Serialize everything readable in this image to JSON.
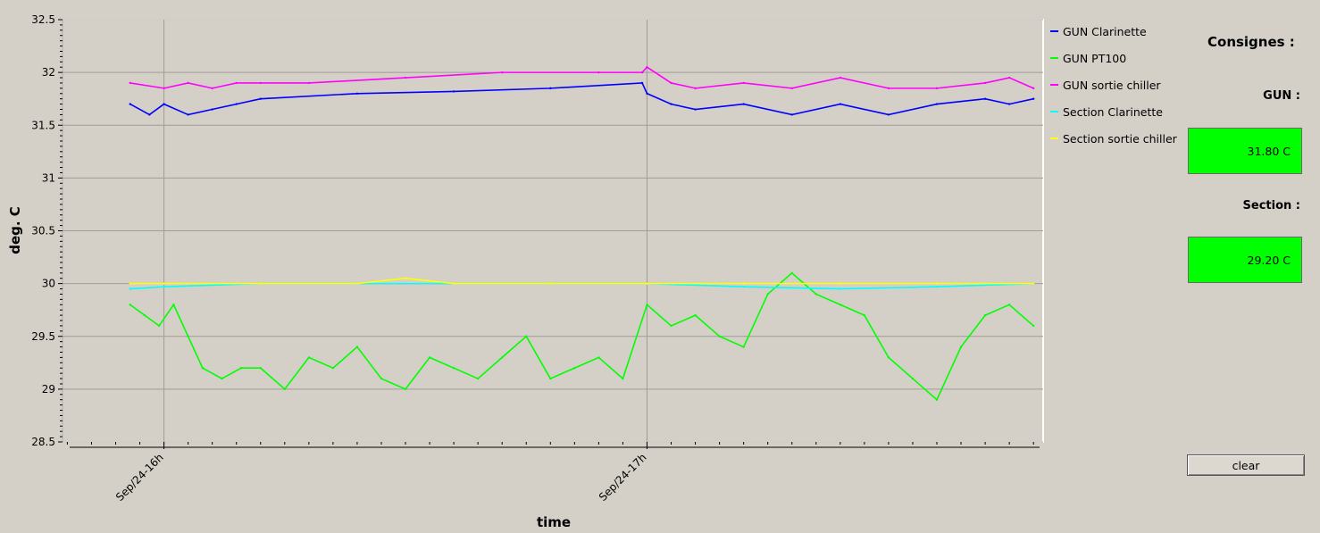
{
  "chart_data": {
    "type": "line",
    "xlabel": "time",
    "ylabel": "deg. C",
    "ylim": [
      28.5,
      32.5
    ],
    "yticks": [
      "28.5",
      "29",
      "29.5",
      "30",
      "30.5",
      "31",
      "31.5",
      "32",
      "32.5"
    ],
    "xticks": [
      "Sep/24-16h",
      "Sep/24-17h"
    ],
    "xrange_hours": [
      15.79,
      17.82
    ],
    "grid": true,
    "legend_placement": "right",
    "series": [
      {
        "name": "GUN Clarinette",
        "color": "#0000ff",
        "x": [
          15.93,
          15.97,
          16.0,
          16.05,
          16.1,
          16.15,
          16.2,
          16.4,
          16.6,
          16.8,
          16.99,
          17.0,
          17.05,
          17.1,
          17.2,
          17.3,
          17.4,
          17.5,
          17.6,
          17.7,
          17.75,
          17.8
        ],
        "y": [
          31.7,
          31.6,
          31.7,
          31.6,
          31.65,
          31.7,
          31.75,
          31.8,
          31.82,
          31.85,
          31.9,
          31.8,
          31.7,
          31.65,
          31.7,
          31.6,
          31.7,
          31.6,
          31.7,
          31.75,
          31.7,
          31.75
        ]
      },
      {
        "name": "GUN PT100",
        "color": "#00ff00",
        "x": [
          15.93,
          15.96,
          15.99,
          16.02,
          16.05,
          16.08,
          16.12,
          16.16,
          16.2,
          16.25,
          16.3,
          16.35,
          16.4,
          16.45,
          16.5,
          16.55,
          16.6,
          16.65,
          16.7,
          16.75,
          16.8,
          16.85,
          16.9,
          16.95,
          17.0,
          17.05,
          17.1,
          17.15,
          17.2,
          17.25,
          17.3,
          17.35,
          17.4,
          17.45,
          17.5,
          17.55,
          17.6,
          17.65,
          17.7,
          17.75,
          17.8
        ],
        "y": [
          29.8,
          29.7,
          29.6,
          29.8,
          29.5,
          29.2,
          29.1,
          29.2,
          29.2,
          29.0,
          29.3,
          29.2,
          29.4,
          29.1,
          29.0,
          29.3,
          29.2,
          29.1,
          29.3,
          29.5,
          29.1,
          29.2,
          29.3,
          29.1,
          29.8,
          29.6,
          29.7,
          29.5,
          29.4,
          29.9,
          30.1,
          29.9,
          29.8,
          29.7,
          29.3,
          29.1,
          28.9,
          29.4,
          29.7,
          29.8,
          29.6
        ]
      },
      {
        "name": "GUN sortie chiller",
        "color": "#ff00ff",
        "x": [
          15.93,
          16.0,
          16.05,
          16.1,
          16.15,
          16.2,
          16.3,
          16.5,
          16.7,
          16.9,
          16.99,
          17.0,
          17.05,
          17.1,
          17.2,
          17.3,
          17.4,
          17.5,
          17.6,
          17.7,
          17.75,
          17.8
        ],
        "y": [
          31.9,
          31.85,
          31.9,
          31.85,
          31.9,
          31.9,
          31.9,
          31.95,
          32.0,
          32.0,
          32.0,
          32.05,
          31.9,
          31.85,
          31.9,
          31.85,
          31.95,
          31.85,
          31.85,
          31.9,
          31.95,
          31.85
        ]
      },
      {
        "name": "Section Clarinette",
        "color": "#00ffff",
        "x": [
          15.93,
          16.0,
          16.2,
          16.4,
          16.6,
          16.8,
          17.0,
          17.2,
          17.4,
          17.6,
          17.8
        ],
        "y": [
          29.95,
          29.97,
          30.0,
          30.0,
          30.0,
          30.0,
          30.0,
          29.97,
          29.95,
          29.97,
          30.0
        ]
      },
      {
        "name": "Section sortie chiller",
        "color": "#ffff00",
        "x": [
          15.93,
          16.0,
          16.2,
          16.4,
          16.5,
          16.6,
          16.8,
          17.0,
          17.2,
          17.4,
          17.6,
          17.8
        ],
        "y": [
          30.0,
          30.0,
          30.0,
          30.0,
          30.05,
          30.0,
          30.0,
          30.0,
          30.0,
          30.0,
          30.0,
          30.0
        ]
      }
    ]
  },
  "legend": {
    "items": [
      {
        "label": "GUN Clarinette",
        "color": "#0000ff"
      },
      {
        "label": "GUN PT100",
        "color": "#00ff00"
      },
      {
        "label": "GUN sortie chiller",
        "color": "#ff00ff"
      },
      {
        "label": "Section Clarinette",
        "color": "#00ffff"
      },
      {
        "label": "Section sortie chiller",
        "color": "#ffff00"
      }
    ]
  },
  "panel": {
    "title": "Consignes :",
    "gun_label": "GUN :",
    "gun_value": "31.80 C",
    "section_label": "Section :",
    "section_value": "29.20 C",
    "clear_label": "clear",
    "box_color": "#00ff00"
  }
}
